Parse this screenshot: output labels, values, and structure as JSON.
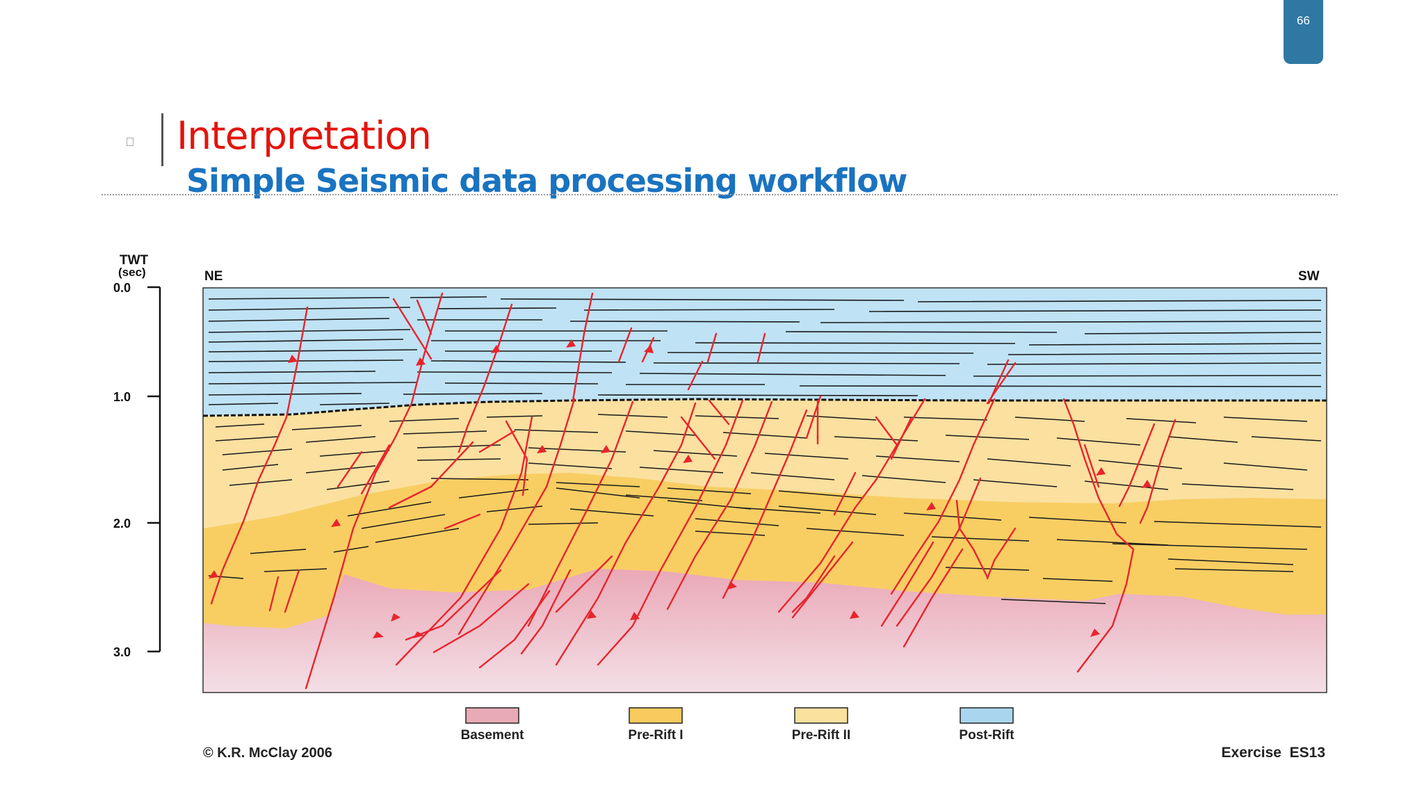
{
  "page_number": "66",
  "title": "Interpretation",
  "subtitle": "Simple Seismic data processing workflow",
  "figure": {
    "axis_label_1": "TWT",
    "axis_label_2": "(sec)",
    "ticks": [
      "0.0",
      "1.0",
      "2.0",
      "3.0"
    ],
    "left_direction": "NE",
    "right_direction": "SW",
    "legend": [
      {
        "label": "Basement",
        "color": "#e8aab6"
      },
      {
        "label": "Pre-Rift I",
        "color": "#f7cb5e"
      },
      {
        "label": "Pre-Rift II",
        "color": "#fbe19e"
      },
      {
        "label": "Post-Rift",
        "color": "#a9d6ee"
      }
    ],
    "copyright": "© K.R. McClay 2006",
    "exercise": "Exercise  ES13",
    "colors": {
      "fault": "#e8242c",
      "horizon": "#1a1a1a",
      "post_rift": "#bfe2f4",
      "pre_rift_ii": "#fbe0a0",
      "pre_rift_i": "#f8ce63",
      "basement": "#eab0bd"
    }
  }
}
